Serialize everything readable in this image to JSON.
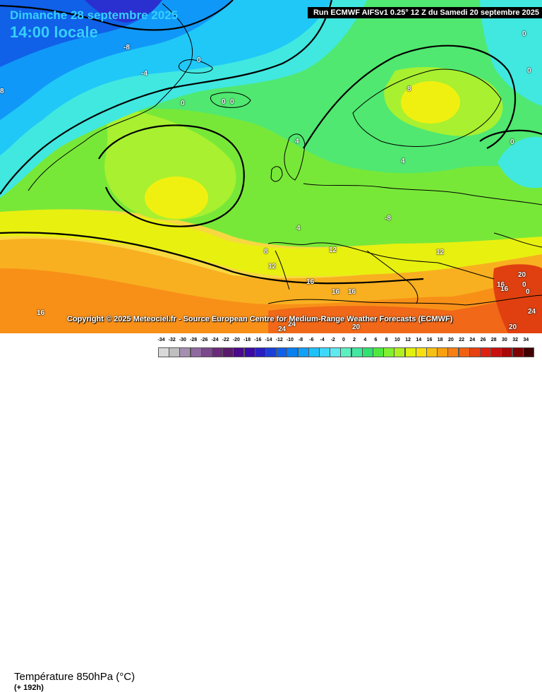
{
  "header": {
    "date": "Dimanche 28 septembre 2025",
    "time": "14:00 locale",
    "run": "Run ECMWF AIFSv1 0.25° 12 Z du Samedi 20 septembre 2025"
  },
  "copyright": "Copyright © 2025 Meteociel.fr - Source European Centre for Medium-Range Weather Forecasts (ECMWF)",
  "legend": {
    "title": "Température 850hPa (°C)",
    "subtitle": "(+ 192h)",
    "ticks": [
      "-34",
      "-32",
      "-30",
      "-28",
      "-26",
      "-24",
      "-22",
      "-20",
      "-18",
      "-16",
      "-14",
      "-12",
      "-10",
      "-8",
      "-6",
      "-4",
      "-2",
      "0",
      "2",
      "4",
      "6",
      "8",
      "10",
      "12",
      "14",
      "16",
      "18",
      "20",
      "22",
      "24",
      "26",
      "28",
      "30",
      "32",
      "34"
    ],
    "colors": [
      "#d9d9d9",
      "#bfbfbf",
      "#a58fb0",
      "#8f6aa0",
      "#7a4a8c",
      "#6a2a7a",
      "#5a1a6a",
      "#4a0a8a",
      "#3a0aa8",
      "#2a20c0",
      "#1a40d8",
      "#1060e8",
      "#0a80f0",
      "#10a0f8",
      "#20c0f8",
      "#40d8f8",
      "#60e8f0",
      "#5cf0c0",
      "#40e8a0",
      "#30e070",
      "#50e840",
      "#80f030",
      "#b0f020",
      "#e0f010",
      "#f8e010",
      "#f8c010",
      "#f8a010",
      "#f88010",
      "#f06010",
      "#e84010",
      "#e02010",
      "#c81010",
      "#a80808",
      "#800000",
      "#400000"
    ]
  },
  "isotherm_labels": [
    {
      "text": "-8"
    },
    {
      "text": "-4"
    },
    {
      "text": "0"
    },
    {
      "text": "0"
    },
    {
      "text": "0"
    },
    {
      "text": "0"
    },
    {
      "text": "0"
    },
    {
      "text": "0"
    },
    {
      "text": "0"
    },
    {
      "text": "8"
    },
    {
      "text": "4"
    },
    {
      "text": "4"
    },
    {
      "text": "4"
    },
    {
      "text": "-8"
    },
    {
      "text": "8"
    },
    {
      "text": "12"
    },
    {
      "text": "12"
    },
    {
      "text": "12"
    },
    {
      "text": "16"
    },
    {
      "text": "16"
    },
    {
      "text": "16"
    },
    {
      "text": "16"
    },
    {
      "text": "16"
    },
    {
      "text": "16"
    },
    {
      "text": "24"
    },
    {
      "text": "24"
    },
    {
      "text": "20"
    },
    {
      "text": "20"
    },
    {
      "text": "20"
    },
    {
      "text": "24"
    },
    {
      "text": "8"
    },
    {
      "text": "0"
    },
    {
      "text": "0"
    }
  ]
}
